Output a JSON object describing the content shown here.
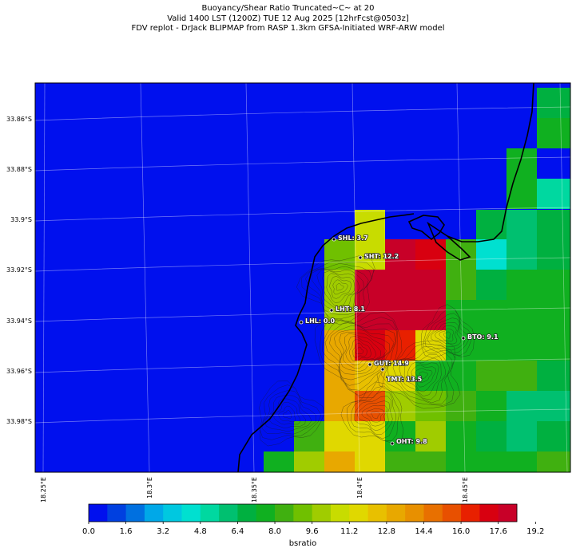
{
  "header": {
    "line1": "Buoyancy/Shear Ratio Truncated~C~    at 20",
    "line2": "Valid 1400 LST (1200Z) TUE 12 Aug 2025 [12hrFcst@0503z]",
    "line3": "FDV replot - DrJack BLIPMAP from RASP 1.3km GFSA-Initiated WRF-ARW model"
  },
  "map": {
    "lat_labels": [
      "33.86°S",
      "33.88°S",
      "33.9°S",
      "33.92°S",
      "33.94°S",
      "33.96°S",
      "33.98°S"
    ],
    "lon_labels": [
      "18.25°E",
      "18.3°E",
      "18.35°E",
      "18.4°E",
      "18.45°E"
    ],
    "background_color": "#0010ee",
    "stations": [
      {
        "label": "SHL: 3.7",
        "value": 3.7
      },
      {
        "label": "SHT: 12.2",
        "value": 12.2
      },
      {
        "label": "LHT: 8.1",
        "value": 8.1
      },
      {
        "label": "LHL: 0.0",
        "value": 0.0
      },
      {
        "label": "BTO: 9.1",
        "value": 9.1
      },
      {
        "label": "GUT: 14.9",
        "value": 14.9
      },
      {
        "label": "TMT: 13.5",
        "value": 13.5
      },
      {
        "label": "OHT: 9.8",
        "value": 9.8
      }
    ]
  },
  "colorbar": {
    "ticks": [
      "0.0",
      "1.6",
      "3.2",
      "4.8",
      "6.4",
      "8.0",
      "9.6",
      "11.2",
      "12.8",
      "14.4",
      "16.0",
      "17.6",
      "19.2"
    ],
    "label": "bsratio",
    "colors": [
      "#0010ee",
      "#0040e0",
      "#0070e0",
      "#00a8e8",
      "#00c8e0",
      "#00e0d0",
      "#00d8a0",
      "#00c070",
      "#00b040",
      "#10b020",
      "#40b010",
      "#70c000",
      "#a0cc00",
      "#c8dc00",
      "#e0d800",
      "#e8c000",
      "#e8a800",
      "#e89000",
      "#e87000",
      "#e85000",
      "#e82000",
      "#d80010",
      "#c80028"
    ]
  }
}
